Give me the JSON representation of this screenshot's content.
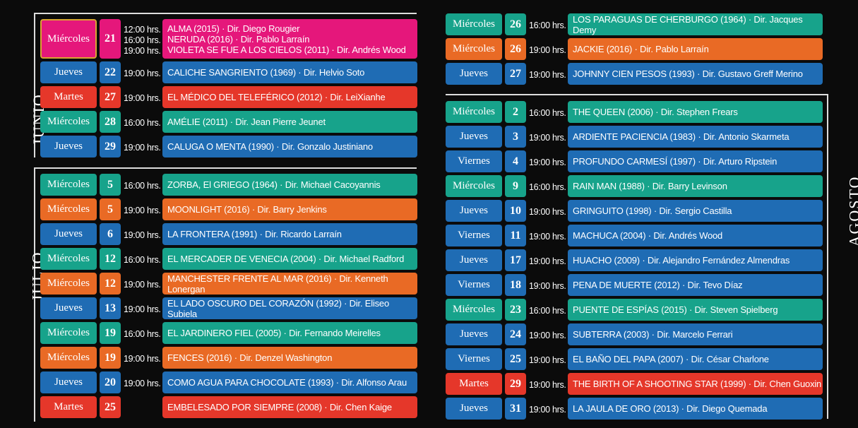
{
  "months": [
    {
      "name": "JUNIO",
      "rows": [
        {
          "weekday": "Miércoles",
          "day": 21,
          "color": "#e5177b",
          "times": [
            "12:00 hrs.",
            "16:00 hrs.",
            "19:00 hrs."
          ],
          "films": [
            "ALMA (2015) · Dir. Diego Rougier",
            "NERUDA (2016) · Dir. Pablo Larraín",
            "VIOLETA SE FUE A LOS CIELOS (2011) · Dir. Andrés Wood"
          ]
        },
        {
          "weekday": "Jueves",
          "day": 22,
          "color": "#1f6cb4",
          "times": [
            "19:00 hrs."
          ],
          "films": [
            "CALICHE SANGRIENTO (1969) · Dir. Helvio Soto"
          ]
        },
        {
          "weekday": "Martes",
          "day": 27,
          "color": "#e5372a",
          "times": [
            "19:00 hrs."
          ],
          "films": [
            "EL MÉDICO DEL TELEFÉRICO (2012) · Dir. LeiXianhe"
          ]
        },
        {
          "weekday": "Miércoles",
          "day": 28,
          "color": "#17a38b",
          "times": [
            "16:00 hrs."
          ],
          "films": [
            "AMÉLIE (2011) · Dir. Jean Pierre Jeunet"
          ]
        },
        {
          "weekday": "Jueves",
          "day": 29,
          "color": "#1f6cb4",
          "times": [
            "19:00 hrs."
          ],
          "films": [
            "CALUGA O MENTA (1990) · Dir. Gonzalo Justiniano"
          ]
        }
      ]
    },
    {
      "name": "JULIO",
      "rows": [
        {
          "weekday": "Miércoles",
          "day": 5,
          "color": "#17a38b",
          "times": [
            "16:00 hrs."
          ],
          "films": [
            "ZORBA, El GRIEGO (1964) · Dir. Michael Cacoyannis"
          ]
        },
        {
          "weekday": "Miércoles",
          "day": 5,
          "color": "#e96a25",
          "times": [
            "19:00 hrs."
          ],
          "films": [
            "MOONLIGHT (2016) · Dir. Barry Jenkins"
          ]
        },
        {
          "weekday": "Jueves",
          "day": 6,
          "color": "#1f6cb4",
          "times": [
            "19:00 hrs."
          ],
          "films": [
            "LA FRONTERA (1991) · Dir. Ricardo Larraín"
          ]
        },
        {
          "weekday": "Miércoles",
          "day": 12,
          "color": "#17a38b",
          "times": [
            "16:00 hrs."
          ],
          "films": [
            "EL MERCADER DE VENECIA (2004) · Dir. Michael Radford"
          ]
        },
        {
          "weekday": "Miércoles",
          "day": 12,
          "color": "#e96a25",
          "times": [
            "19:00 hrs."
          ],
          "films": [
            "MANCHESTER FRENTE AL MAR (2016) · Dir. Kenneth Lonergan"
          ]
        },
        {
          "weekday": "Jueves",
          "day": 13,
          "color": "#1f6cb4",
          "times": [
            "19:00 hrs."
          ],
          "films": [
            "EL LADO OSCURO DEL CORAZÓN (1992) · Dir. Eliseo Subiela"
          ]
        },
        {
          "weekday": "Miércoles",
          "day": 19,
          "color": "#17a38b",
          "times": [
            "16:00 hrs."
          ],
          "films": [
            "EL JARDINERO FIEL (2005) · Dir. Fernando Meirelles"
          ]
        },
        {
          "weekday": "Miércoles",
          "day": 19,
          "color": "#e96a25",
          "times": [
            "19:00 hrs."
          ],
          "films": [
            "FENCES (2016) · Dir. Denzel Washington"
          ]
        },
        {
          "weekday": "Jueves",
          "day": 20,
          "color": "#1f6cb4",
          "times": [
            "19:00 hrs."
          ],
          "films": [
            "COMO AGUA PARA CHOCOLATE (1993) · Dir. Alfonso Arau"
          ]
        },
        {
          "weekday": "Martes",
          "day": 25,
          "color": "#e5372a",
          "times": [],
          "films": [
            "EMBELESADO POR SIEMPRE (2008) · Dir. Chen Kaige"
          ]
        }
      ]
    },
    {
      "rows": [
        {
          "weekday": "Miércoles",
          "day": 26,
          "color": "#17a38b",
          "times": [
            "16:00 hrs."
          ],
          "films": [
            "LOS PARAGUAS DE CHERBURGO (1964) · Dir. Jacques Demy"
          ]
        },
        {
          "weekday": "Miércoles",
          "day": 26,
          "color": "#e96a25",
          "times": [
            "19:00 hrs."
          ],
          "films": [
            "JACKIE (2016) · Dir. Pablo Larraín"
          ]
        },
        {
          "weekday": "Jueves",
          "day": 27,
          "color": "#1f6cb4",
          "times": [
            "19:00 hrs."
          ],
          "films": [
            "JOHNNY CIEN PESOS (1993) · Dir. Gustavo Greff Merino"
          ]
        }
      ]
    },
    {
      "name": "AGOSTO",
      "rows": [
        {
          "weekday": "Miércoles",
          "day": 2,
          "color": "#17a38b",
          "times": [
            "16:00 hrs."
          ],
          "films": [
            "THE QUEEN (2006) · Dir. Stephen Frears"
          ]
        },
        {
          "weekday": "Jueves",
          "day": 3,
          "color": "#1f6cb4",
          "times": [
            "19:00 hrs."
          ],
          "films": [
            "ARDIENTE PACIENCIA (1983) · Dir. Antonio Skarmeta"
          ]
        },
        {
          "weekday": "Viernes",
          "day": 4,
          "color": "#1f6cb4",
          "times": [
            "19:00 hrs."
          ],
          "films": [
            "PROFUNDO CARMESÍ (1997) · Dir. Arturo Ripstein"
          ]
        },
        {
          "weekday": "Miércoles",
          "day": 9,
          "color": "#17a38b",
          "times": [
            "16:00 hrs."
          ],
          "films": [
            "RAIN MAN (1988) · Dir. Barry Levinson"
          ]
        },
        {
          "weekday": "Jueves",
          "day": 10,
          "color": "#1f6cb4",
          "times": [
            "19:00 hrs."
          ],
          "films": [
            "GRINGUITO (1998) · Dir. Sergio Castilla"
          ]
        },
        {
          "weekday": "Viernes",
          "day": 11,
          "color": "#1f6cb4",
          "times": [
            "19:00 hrs."
          ],
          "films": [
            "MACHUCA (2004) · Dir. Andrés Wood"
          ]
        },
        {
          "weekday": "Jueves",
          "day": 17,
          "color": "#1f6cb4",
          "times": [
            "19:00 hrs."
          ],
          "films": [
            "HUACHO (2009) · Dir. Alejandro Fernández Almendras"
          ]
        },
        {
          "weekday": "Viernes",
          "day": 18,
          "color": "#1f6cb4",
          "times": [
            "19:00 hrs."
          ],
          "films": [
            "PENA DE MUERTE (2012) · Dir. Tevo Díaz"
          ]
        },
        {
          "weekday": "Miércoles",
          "day": 23,
          "color": "#17a38b",
          "times": [
            "16:00 hrs."
          ],
          "films": [
            "PUENTE DE ESPÍAS (2015) · Dir. Steven Spielberg"
          ]
        },
        {
          "weekday": "Jueves",
          "day": 24,
          "color": "#1f6cb4",
          "times": [
            "19:00 hrs."
          ],
          "films": [
            "SUBTERRA (2003) · Dir. Marcelo Ferrari"
          ]
        },
        {
          "weekday": "Viernes",
          "day": 25,
          "color": "#1f6cb4",
          "times": [
            "19:00 hrs."
          ],
          "films": [
            "EL BAÑO DEL PAPA (2007) · Dir. César Charlone"
          ]
        },
        {
          "weekday": "Martes",
          "day": 29,
          "color": "#e5372a",
          "times": [
            "19:00 hrs."
          ],
          "films": [
            "THE BIRTH OF A SHOOTING STAR (1999) · Dir. Chen Guoxin"
          ]
        },
        {
          "weekday": "Jueves",
          "day": 31,
          "color": "#1f6cb4",
          "times": [
            "19:00 hrs."
          ],
          "films": [
            "LA JAULA DE ORO (2013) · Dir. Diego Quemada"
          ]
        }
      ]
    }
  ]
}
